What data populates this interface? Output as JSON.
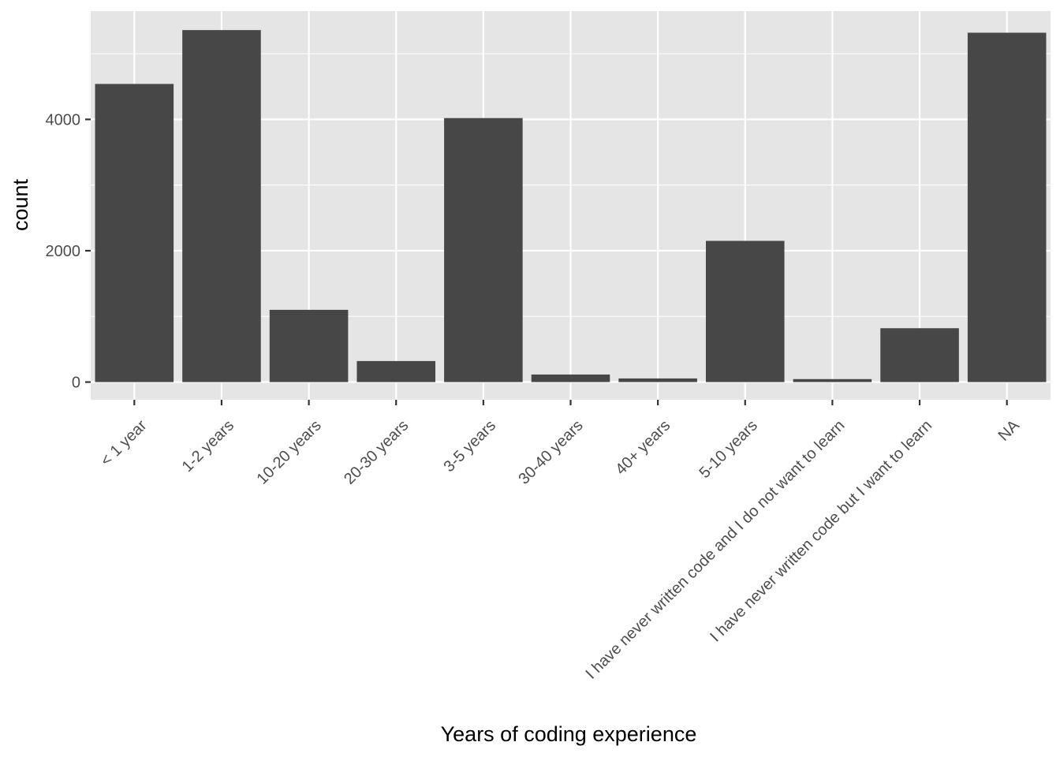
{
  "chart_data": {
    "type": "bar",
    "xlabel": "Years of coding experience",
    "ylabel": "count",
    "categories": [
      "< 1 year",
      "1-2 years",
      "10-20 years",
      "20-30 years",
      "3-5 years",
      "30-40 years",
      "40+ years",
      "5-10 years",
      "I have never written code and I do not want to learn",
      "I have never written code but I want to learn",
      "NA"
    ],
    "values": [
      4540,
      5360,
      1100,
      320,
      4020,
      115,
      55,
      2150,
      45,
      820,
      5320
    ],
    "ylim": [
      -270,
      5650
    ],
    "yticks": [
      0,
      2000,
      4000
    ],
    "grid": true,
    "legend": "none",
    "colors": {
      "panel_background": "#e5e5e5",
      "grid": "#ffffff",
      "bar": "#474747",
      "tick_text": "#4d4d4d",
      "axis_title": "#000000"
    }
  }
}
